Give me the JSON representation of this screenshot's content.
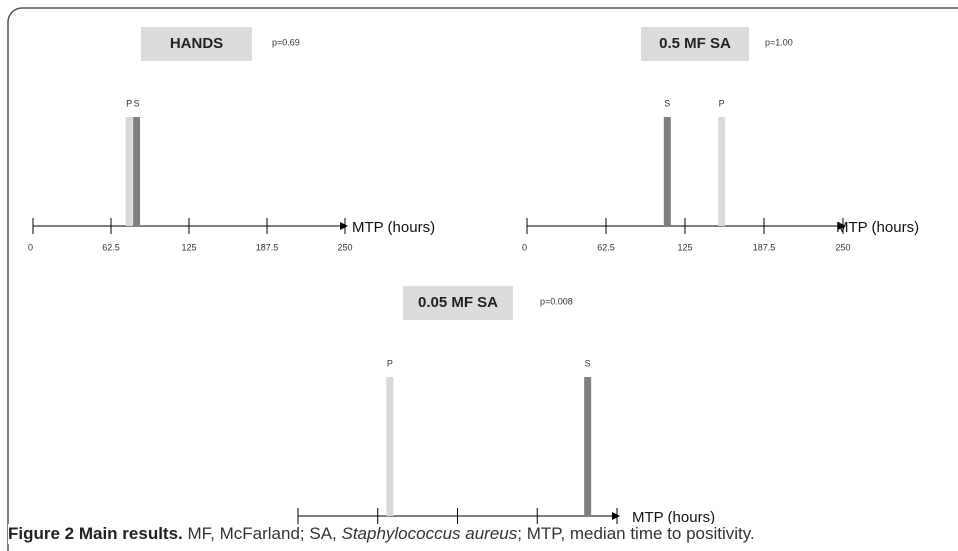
{
  "chart_data": [
    {
      "type": "marker",
      "title": "HANDS",
      "annotation": "p=0.69",
      "categories": [
        "P",
        "S"
      ],
      "values": [
        77,
        83
      ],
      "colors": [
        "#d9d9d9",
        "#7f7f7f"
      ],
      "xlim": [
        0,
        250
      ],
      "xticks": [
        0,
        62.5,
        125,
        187.5,
        250
      ],
      "xlabel": "MTP (hours)"
    },
    {
      "type": "marker",
      "title": "0.5 MF SA",
      "annotation": "p=1.00",
      "categories": [
        "S",
        "P"
      ],
      "values": [
        111,
        154
      ],
      "colors": [
        "#7f7f7f",
        "#d9d9d9"
      ],
      "xlim": [
        0,
        250
      ],
      "xticks": [
        0,
        62.5,
        125,
        187.5,
        250
      ],
      "xlabel": "MTP (hours)"
    },
    {
      "type": "marker",
      "title": "0.05 MF SA",
      "annotation": "p=0.008",
      "categories": [
        "P",
        "S"
      ],
      "values": [
        72,
        227
      ],
      "colors": [
        "#d9d9d9",
        "#7f7f7f"
      ],
      "xlim": [
        0,
        250
      ],
      "xticks": [
        0,
        62.5,
        125,
        187.5,
        250
      ],
      "xlabel": "MTP (hours)"
    }
  ],
  "caption": {
    "label": "Figure 2 Main results.",
    "parts": [
      "MF, McFarland; SA, ",
      "Staphylococcus aureus",
      "; MTP, median time to positivity."
    ]
  }
}
